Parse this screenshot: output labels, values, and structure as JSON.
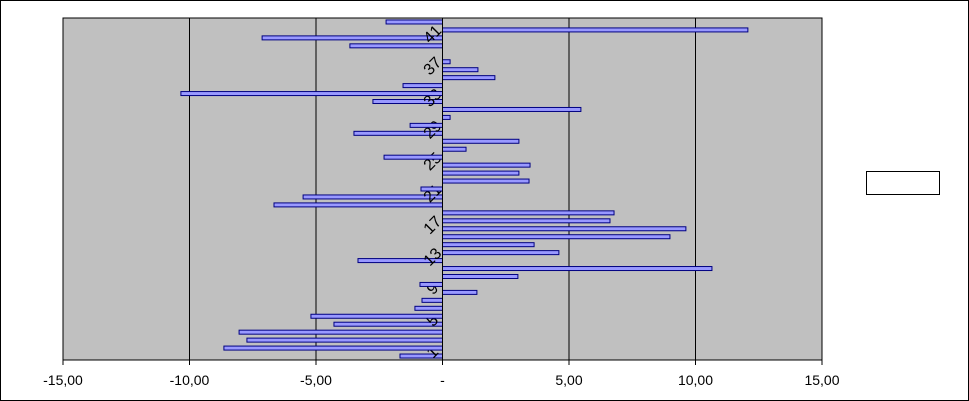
{
  "chart_data": {
    "type": "hbar",
    "categories": [
      "1",
      null,
      null,
      null,
      "5",
      null,
      null,
      null,
      "9",
      null,
      null,
      null,
      "13",
      null,
      null,
      null,
      "17",
      null,
      null,
      null,
      "21",
      null,
      null,
      null,
      "25",
      null,
      null,
      null,
      "29",
      null,
      null,
      null,
      "33",
      null,
      null,
      null,
      "37",
      null,
      null,
      null,
      "41",
      null,
      null
    ],
    "values": [
      -1.68,
      -8.64,
      -7.73,
      -8.04,
      -4.29,
      -5.2,
      -1.09,
      -0.81,
      1.36,
      -0.89,
      2.98,
      10.65,
      -3.34,
      4.6,
      3.62,
      8.99,
      9.62,
      6.62,
      6.78,
      -6.66,
      -5.51,
      -0.85,
      3.42,
      3.02,
      3.46,
      -2.31,
      0.93,
      3.02,
      -3.5,
      -1.28,
      0.3,
      5.47,
      -2.75,
      -10.34,
      -1.56,
      2.07,
      1.4,
      0.3,
      0,
      -3.66,
      -7.13,
      12.07,
      -2.23
    ],
    "color": "#9999ff",
    "xlim": [
      -15,
      15
    ],
    "xticks": [
      {
        "value": -15,
        "label": "-15,00"
      },
      {
        "value": -10,
        "label": "-10,00"
      },
      {
        "value": -5,
        "label": "-5,00"
      },
      {
        "value": 0,
        "label": "-"
      },
      {
        "value": 5,
        "label": "5,00"
      },
      {
        "value": 10,
        "label": "10,00"
      },
      {
        "value": 15,
        "label": "15,00"
      }
    ],
    "grid": true
  }
}
